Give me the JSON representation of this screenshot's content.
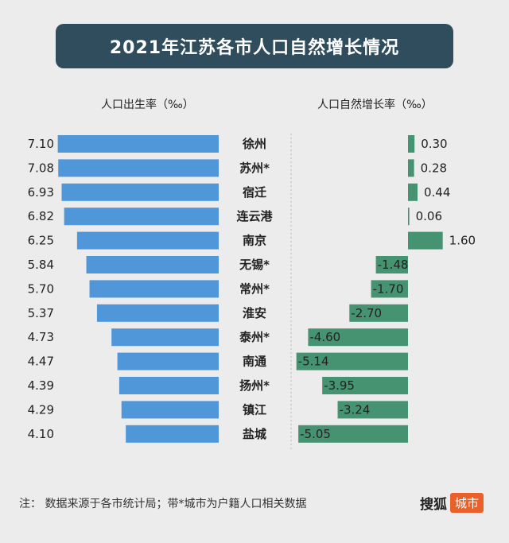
{
  "title": "2021年江苏各市人口自然增长情况",
  "chart_data": {
    "type": "bar",
    "categories": [
      "徐州",
      "苏州*",
      "宿迁",
      "连云港",
      "南京",
      "无锡*",
      "常州*",
      "淮安",
      "泰州*",
      "南通",
      "扬州*",
      "镇江",
      "盐城"
    ],
    "series": [
      {
        "name": "人口出生率（‰）",
        "values": [
          7.1,
          7.08,
          6.93,
          6.82,
          6.25,
          5.84,
          5.7,
          5.37,
          4.73,
          4.47,
          4.39,
          4.29,
          4.1
        ],
        "labels": [
          "7.10",
          "7.08",
          "6.93",
          "6.82",
          "6.25",
          "5.84",
          "5.70",
          "5.37",
          "4.73",
          "4.47",
          "4.39",
          "4.29",
          "4.10"
        ],
        "color": "#4f97d8"
      },
      {
        "name": "人口自然增长率（‰）",
        "values": [
          0.3,
          0.28,
          0.44,
          0.06,
          1.6,
          -1.48,
          -1.7,
          -2.7,
          -4.6,
          -5.14,
          -3.95,
          -3.24,
          -5.05
        ],
        "labels": [
          "0.30",
          "0.28",
          "0.44",
          "0.06",
          "1.60",
          "-1.48",
          "-1.70",
          "-2.70",
          "-4.60",
          "-5.14",
          "-3.95",
          "-3.24",
          "-5.05"
        ],
        "color": "#459370"
      }
    ]
  },
  "footnote": "注：  数据来源于各市统计局；带*城市为户籍人口相关数据",
  "brand": {
    "name": "搜狐",
    "badge": "城市"
  }
}
